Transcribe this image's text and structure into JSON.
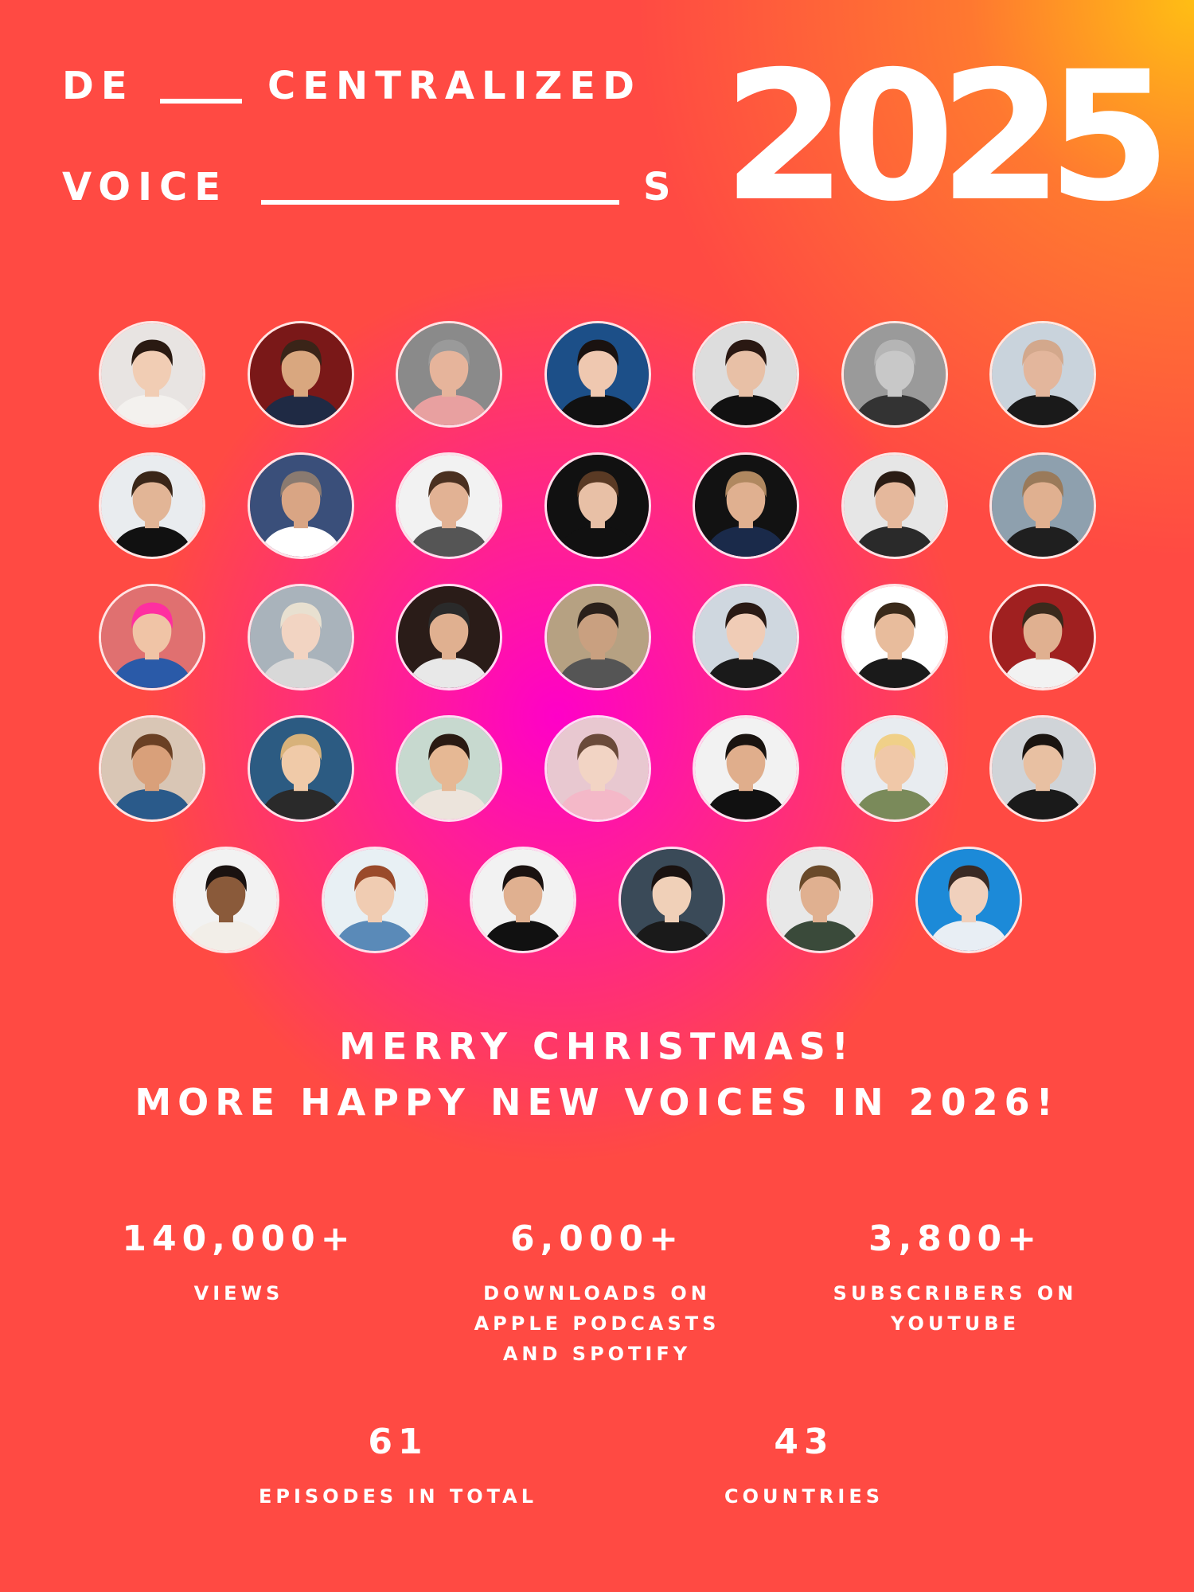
{
  "header": {
    "line1_left": "DE",
    "line1_right": "CENTRALIZED",
    "line2_left": "VOICE",
    "line2_right": "S",
    "year": "2025"
  },
  "avatars": [
    {
      "bg": "#e8e4e2",
      "skin": "#f1cdb4",
      "hair": "#2a1a12",
      "shirt": "#f3f1ee"
    },
    {
      "bg": "#7a1818",
      "skin": "#d9a77f",
      "hair": "#3a2418",
      "shirt": "#1f2a44"
    },
    {
      "bg": "#8a8a8a",
      "skin": "#e6b49b",
      "hair": "#9a9a9a",
      "shirt": "#e8a0a0"
    },
    {
      "bg": "#1c4f88",
      "skin": "#efc8b0",
      "hair": "#1a1210",
      "shirt": "#111111"
    },
    {
      "bg": "#dddddd",
      "skin": "#e8c0a6",
      "hair": "#2a1812",
      "shirt": "#111111"
    },
    {
      "bg": "#9a9a9a",
      "skin": "#c8c8c8",
      "hair": "#b5b5b5",
      "shirt": "#333333"
    },
    {
      "bg": "#c9d3dc",
      "skin": "#e3b69c",
      "hair": "#d3a88c",
      "shirt": "#1a1a1a"
    },
    {
      "bg": "#e9ecef",
      "skin": "#e2b596",
      "hair": "#3a2618",
      "shirt": "#111111"
    },
    {
      "bg": "#3a4f7a",
      "skin": "#d9a584",
      "hair": "#8a7a70",
      "shirt": "#ffffff"
    },
    {
      "bg": "#f2f2f2",
      "skin": "#e2b294",
      "hair": "#4a3020",
      "shirt": "#555555"
    },
    {
      "bg": "#111111",
      "skin": "#e8c0a6",
      "hair": "#5a3a24",
      "shirt": "#111111"
    },
    {
      "bg": "#121212",
      "skin": "#e0b090",
      "hair": "#b08860",
      "shirt": "#1a2a4a"
    },
    {
      "bg": "#e6e6e6",
      "skin": "#e5b89c",
      "hair": "#2a1c14",
      "shirt": "#2a2a2a"
    },
    {
      "bg": "#8ea0ae",
      "skin": "#e0b090",
      "hair": "#9a7a5a",
      "shirt": "#1f1f1f"
    },
    {
      "bg": "#e07070",
      "skin": "#f0c4a6",
      "hair": "#ff2fa0",
      "shirt": "#2a5aa8"
    },
    {
      "bg": "#a9b3bb",
      "skin": "#f2d4c2",
      "hair": "#e8e0d0",
      "shirt": "#d8d8d8"
    },
    {
      "bg": "#2a1c18",
      "skin": "#e0b090",
      "hair": "#2a2a2a",
      "shirt": "#e8e8e8"
    },
    {
      "bg": "#b6a182",
      "skin": "#c9a080",
      "hair": "#2a201a",
      "shirt": "#555555"
    },
    {
      "bg": "#cfd7df",
      "skin": "#f0ccb6",
      "hair": "#2a1a14",
      "shirt": "#1a1a1a"
    },
    {
      "bg": "#ffffff",
      "skin": "#e8bc9c",
      "hair": "#3a2a1a",
      "shirt": "#1a1a1a"
    },
    {
      "bg": "#a02020",
      "skin": "#e0b090",
      "hair": "#3a2a1c",
      "shirt": "#f2f2f2"
    },
    {
      "bg": "#d9c6b5",
      "skin": "#d9a07a",
      "hair": "#6a4024",
      "shirt": "#2a5a8a"
    },
    {
      "bg": "#2c5b82",
      "skin": "#f0caa8",
      "hair": "#d8b27a",
      "shirt": "#2a2a2a"
    },
    {
      "bg": "#c7d9cf",
      "skin": "#e6b894",
      "hair": "#2a1a12",
      "shirt": "#ece4dc"
    },
    {
      "bg": "#e8c8d0",
      "skin": "#f2d4c4",
      "hair": "#6a4a3a",
      "shirt": "#f4b8c8"
    },
    {
      "bg": "#f2f2f2",
      "skin": "#e0ae8c",
      "hair": "#1a1410",
      "shirt": "#111111"
    },
    {
      "bg": "#e8ecf0",
      "skin": "#f0c8a8",
      "hair": "#f0d088",
      "shirt": "#7a8a5a"
    },
    {
      "bg": "#d0d4d8",
      "skin": "#e8c0a2",
      "hair": "#1a1410",
      "shirt": "#1a1a1a"
    },
    {
      "bg": "#f2f2f2",
      "skin": "#8a5a3a",
      "hair": "#1a1210",
      "shirt": "#f2eee8"
    },
    {
      "bg": "#e8f0f4",
      "skin": "#f0ccb2",
      "hair": "#9a4a2a",
      "shirt": "#5a8ab8"
    },
    {
      "bg": "#f2f2f2",
      "skin": "#e0b090",
      "hair": "#1a1210",
      "shirt": "#111111"
    },
    {
      "bg": "#3a4a58",
      "skin": "#f0d0b8",
      "hair": "#1a1210",
      "shirt": "#1a1a1a"
    },
    {
      "bg": "#e8e8e8",
      "skin": "#e0b090",
      "hair": "#6a4a2a",
      "shirt": "#3a4a3a"
    },
    {
      "bg": "#1c8ad8",
      "skin": "#f0d0bc",
      "hair": "#3a2a24",
      "shirt": "#e8eef4"
    }
  ],
  "greeting": {
    "line1": "MERRY CHRISTMAS!",
    "line2": "MORE HAPPY NEW VOICES IN 2026!"
  },
  "stats": [
    {
      "value": "140,000+",
      "label": [
        "VIEWS"
      ]
    },
    {
      "value": "6,000+",
      "label": [
        "DOWNLOADS ON",
        "APPLE PODCASTS",
        "AND SPOTIFY"
      ]
    },
    {
      "value": "3,800+",
      "label": [
        "SUBSCRIBERS ON",
        "YOUTUBE"
      ]
    },
    {
      "value": "61",
      "label": [
        "EPISODES IN TOTAL"
      ]
    },
    {
      "value": "43",
      "label": [
        "COUNTRIES"
      ]
    }
  ]
}
